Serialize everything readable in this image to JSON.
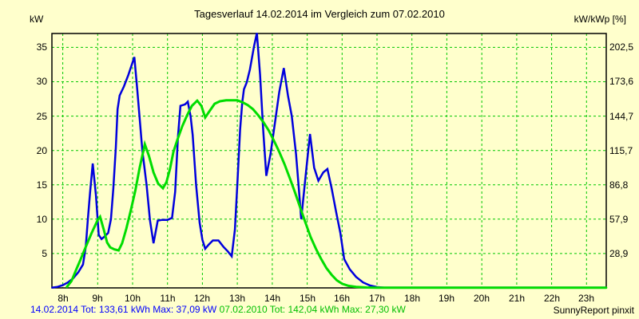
{
  "colors": {
    "background": "#ffffcc",
    "grid": "#00c800",
    "frame": "#000000",
    "series_2014": "#0000dd",
    "series_2010": "#00dd00",
    "footer_2014": "#0000ff",
    "footer_2010": "#00c000",
    "text": "#000000"
  },
  "footer": {
    "brand": "SunnyReport pinxit"
  },
  "chart_data": {
    "type": "line",
    "title": "Tagesverlauf 14.02.2014 im Vergleich zum 07.02.2010",
    "grid": {
      "on": true,
      "style": "dashed",
      "color": "#00c800"
    },
    "legend_position": "none",
    "x_axis": {
      "unit": "hour of day",
      "min": 7.69,
      "max": 23.565,
      "tick_hours": [
        8,
        9,
        10,
        11,
        12,
        13,
        14,
        15,
        16,
        17,
        18,
        19,
        20,
        21,
        22,
        23
      ],
      "tick_labels": [
        "8h",
        "9h",
        "10h",
        "11h",
        "12h",
        "13h",
        "14h",
        "15h",
        "16h",
        "17h",
        "18h",
        "19h",
        "20h",
        "21h",
        "22h",
        "23h"
      ]
    },
    "left_axis": {
      "label": "kW",
      "min": 0,
      "top_value": 37.02,
      "ticks": [
        35,
        30,
        25,
        20,
        15,
        10,
        5
      ]
    },
    "right_axis": {
      "label": "kW/kWp [%]",
      "ticks": [
        "202,5",
        "173,6",
        "144,7",
        "115,7",
        "86,8",
        "57,9",
        "28,9"
      ],
      "tick_positions_kw": [
        35,
        30,
        25,
        20,
        15,
        10,
        5
      ]
    },
    "series": [
      {
        "name": "14.02.2014",
        "date": "14.02.2014",
        "total": "133,61 kWh",
        "max": "37,09 kW",
        "summary": "14.02.2014 Tot: 133,61 kWh Max: 37,09 kW",
        "color": "#0000dd",
        "width": 2.5,
        "points": [
          [
            7.7,
            0.05
          ],
          [
            7.85,
            0.15
          ],
          [
            8.0,
            0.4
          ],
          [
            8.15,
            0.8
          ],
          [
            8.3,
            1.4
          ],
          [
            8.45,
            2.3
          ],
          [
            8.58,
            3.4
          ],
          [
            8.66,
            6.0
          ],
          [
            8.72,
            10.0
          ],
          [
            8.78,
            13.8
          ],
          [
            8.86,
            18.1
          ],
          [
            8.95,
            13.5
          ],
          [
            9.03,
            7.7
          ],
          [
            9.11,
            7.1
          ],
          [
            9.2,
            7.5
          ],
          [
            9.3,
            8.0
          ],
          [
            9.38,
            10.0
          ],
          [
            9.45,
            14.5
          ],
          [
            9.52,
            20.4
          ],
          [
            9.57,
            26.0
          ],
          [
            9.63,
            28.0
          ],
          [
            9.75,
            29.3
          ],
          [
            9.88,
            31.0
          ],
          [
            10.05,
            33.6
          ],
          [
            10.14,
            28.5
          ],
          [
            10.28,
            20.0
          ],
          [
            10.4,
            15.0
          ],
          [
            10.5,
            9.8
          ],
          [
            10.6,
            6.5
          ],
          [
            10.72,
            9.8
          ],
          [
            10.85,
            9.9
          ],
          [
            11.0,
            9.9
          ],
          [
            11.13,
            10.2
          ],
          [
            11.22,
            14.0
          ],
          [
            11.3,
            22.0
          ],
          [
            11.37,
            26.5
          ],
          [
            11.5,
            26.7
          ],
          [
            11.58,
            27.1
          ],
          [
            11.66,
            25.0
          ],
          [
            11.72,
            22.3
          ],
          [
            11.82,
            15.0
          ],
          [
            11.92,
            9.5
          ],
          [
            12.0,
            7.0
          ],
          [
            12.08,
            5.7
          ],
          [
            12.18,
            6.3
          ],
          [
            12.3,
            6.9
          ],
          [
            12.46,
            6.9
          ],
          [
            12.6,
            6.0
          ],
          [
            12.73,
            5.3
          ],
          [
            12.84,
            4.6
          ],
          [
            12.93,
            8.5
          ],
          [
            13.0,
            15.0
          ],
          [
            13.08,
            23.0
          ],
          [
            13.14,
            27.0
          ],
          [
            13.19,
            28.9
          ],
          [
            13.27,
            29.9
          ],
          [
            13.36,
            31.8
          ],
          [
            13.48,
            35.2
          ],
          [
            13.56,
            37.09
          ],
          [
            13.65,
            31.0
          ],
          [
            13.74,
            23.0
          ],
          [
            13.83,
            16.3
          ],
          [
            13.95,
            19.5
          ],
          [
            14.09,
            24.5
          ],
          [
            14.2,
            28.5
          ],
          [
            14.33,
            32.0
          ],
          [
            14.45,
            28.0
          ],
          [
            14.56,
            25.0
          ],
          [
            14.68,
            19.5
          ],
          [
            14.76,
            14.5
          ],
          [
            14.83,
            10.0
          ],
          [
            14.96,
            16.5
          ],
          [
            15.08,
            22.4
          ],
          [
            15.2,
            17.5
          ],
          [
            15.32,
            15.6
          ],
          [
            15.46,
            16.8
          ],
          [
            15.58,
            17.3
          ],
          [
            15.7,
            14.5
          ],
          [
            15.83,
            11.0
          ],
          [
            15.95,
            8.0
          ],
          [
            16.06,
            4.2
          ],
          [
            16.22,
            2.7
          ],
          [
            16.4,
            1.6
          ],
          [
            16.6,
            0.8
          ],
          [
            16.8,
            0.35
          ],
          [
            17.0,
            0.12
          ],
          [
            17.2,
            0.05
          ],
          [
            23.56,
            0.05
          ]
        ]
      },
      {
        "name": "07.02.2010",
        "date": "07.02.2010",
        "total": "142,04 kWh",
        "max": "27,30 kW",
        "summary": "07.02.2010 Tot: 142,04 kWh Max: 27,30 kW",
        "color": "#00dd00",
        "width": 3,
        "points": [
          [
            8.12,
            0.15
          ],
          [
            8.25,
            1.0
          ],
          [
            8.38,
            2.6
          ],
          [
            8.5,
            4.0
          ],
          [
            8.62,
            5.5
          ],
          [
            8.72,
            6.7
          ],
          [
            8.82,
            7.9
          ],
          [
            8.92,
            9.0
          ],
          [
            9.0,
            9.9
          ],
          [
            9.07,
            10.35
          ],
          [
            9.18,
            8.4
          ],
          [
            9.27,
            6.6
          ],
          [
            9.36,
            5.9
          ],
          [
            9.48,
            5.6
          ],
          [
            9.6,
            5.45
          ],
          [
            9.7,
            6.5
          ],
          [
            9.82,
            8.6
          ],
          [
            9.95,
            11.3
          ],
          [
            10.08,
            14.2
          ],
          [
            10.2,
            17.4
          ],
          [
            10.35,
            20.9
          ],
          [
            10.47,
            19.2
          ],
          [
            10.6,
            16.8
          ],
          [
            10.73,
            15.2
          ],
          [
            10.87,
            14.5
          ],
          [
            10.97,
            15.4
          ],
          [
            11.07,
            17.3
          ],
          [
            11.17,
            19.8
          ],
          [
            11.28,
            21.5
          ],
          [
            11.42,
            23.5
          ],
          [
            11.56,
            25.1
          ],
          [
            11.7,
            26.5
          ],
          [
            11.85,
            27.25
          ],
          [
            11.97,
            26.5
          ],
          [
            12.08,
            24.8
          ],
          [
            12.2,
            25.7
          ],
          [
            12.35,
            26.8
          ],
          [
            12.5,
            27.15
          ],
          [
            12.68,
            27.3
          ],
          [
            12.85,
            27.3
          ],
          [
            13.0,
            27.3
          ],
          [
            13.15,
            27.0
          ],
          [
            13.3,
            26.6
          ],
          [
            13.45,
            26.0
          ],
          [
            13.6,
            25.1
          ],
          [
            13.75,
            24.1
          ],
          [
            13.9,
            22.9
          ],
          [
            14.05,
            21.4
          ],
          [
            14.2,
            19.8
          ],
          [
            14.35,
            18.0
          ],
          [
            14.5,
            16.0
          ],
          [
            14.65,
            13.9
          ],
          [
            14.8,
            11.7
          ],
          [
            14.95,
            9.5
          ],
          [
            15.1,
            7.4
          ],
          [
            15.25,
            5.7
          ],
          [
            15.4,
            4.2
          ],
          [
            15.55,
            2.9
          ],
          [
            15.7,
            1.9
          ],
          [
            15.85,
            1.1
          ],
          [
            16.0,
            0.6
          ],
          [
            16.18,
            0.3
          ],
          [
            16.4,
            0.15
          ],
          [
            16.7,
            0.06
          ],
          [
            17.0,
            0.02
          ],
          [
            23.56,
            0.02
          ]
        ]
      }
    ]
  }
}
